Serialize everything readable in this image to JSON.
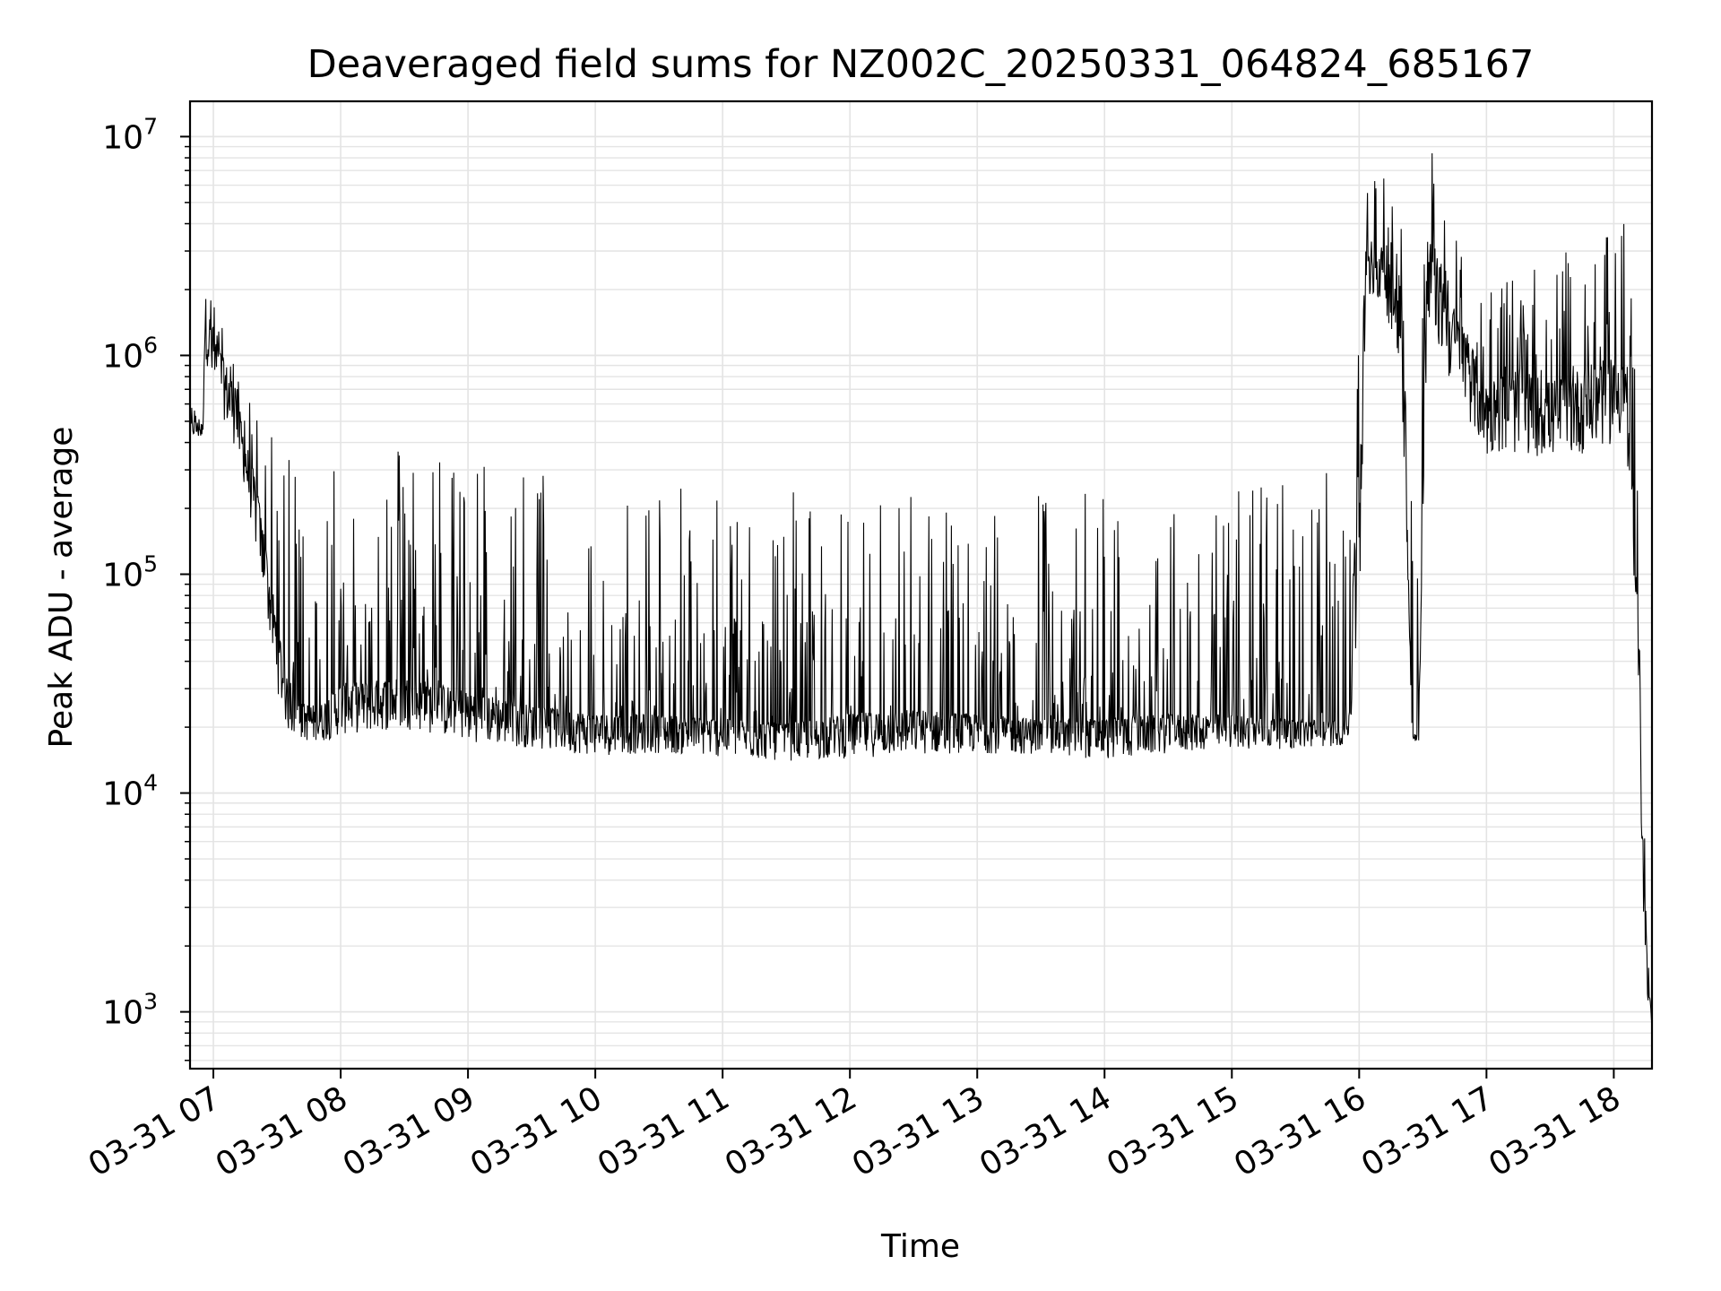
{
  "chart_data": {
    "type": "line",
    "title": "Deaveraged field sums for NZ002C_20250331_064824_685167",
    "xlabel": "Time",
    "ylabel": "Peak ADU - average",
    "x_scale": "time",
    "y_scale": "log",
    "xlim": [
      "2025-03-31 06:49",
      "2025-03-31 18:18"
    ],
    "ylim": [
      550,
      14500000
    ],
    "grid": true,
    "legend": "none",
    "x_tick_labels": [
      "03-31 07",
      "03-31 08",
      "03-31 09",
      "03-31 10",
      "03-31 11",
      "03-31 12",
      "03-31 13",
      "03-31 14",
      "03-31 15",
      "03-31 16",
      "03-31 17",
      "03-31 18"
    ],
    "x_tick_times": [
      "2025-03-31 07:00",
      "2025-03-31 08:00",
      "2025-03-31 09:00",
      "2025-03-31 10:00",
      "2025-03-31 11:00",
      "2025-03-31 12:00",
      "2025-03-31 13:00",
      "2025-03-31 14:00",
      "2025-03-31 15:00",
      "2025-03-31 16:00",
      "2025-03-31 17:00",
      "2025-03-31 18:00"
    ],
    "y_ticks": [
      1000,
      10000,
      100000,
      1000000,
      10000000
    ],
    "y_tick_labels": [
      {
        "base": "10",
        "exp": "3"
      },
      {
        "base": "10",
        "exp": "4"
      },
      {
        "base": "10",
        "exp": "5"
      },
      {
        "base": "10",
        "exp": "6"
      },
      {
        "base": "10",
        "exp": "7"
      }
    ],
    "colors": {
      "line": "#000000",
      "grid": "#e4e4e4",
      "axes": "#000000"
    },
    "series": [
      {
        "x": [
          "2025-03-31 06:49",
          "2025-03-31 06:55",
          "2025-03-31 06:56",
          "2025-03-31 07:00",
          "2025-03-31 07:05",
          "2025-03-31 07:10",
          "2025-03-31 07:15",
          "2025-03-31 07:20",
          "2025-03-31 07:25",
          "2025-03-31 07:30",
          "2025-03-31 07:35",
          "2025-03-31 07:40",
          "2025-03-31 07:50",
          "2025-03-31 08:00",
          "2025-03-31 08:30",
          "2025-03-31 09:00",
          "2025-03-31 09:30",
          "2025-03-31 10:00",
          "2025-03-31 10:30",
          "2025-03-31 11:00",
          "2025-03-31 11:30",
          "2025-03-31 12:00",
          "2025-03-31 12:30",
          "2025-03-31 13:00",
          "2025-03-31 13:30",
          "2025-03-31 14:00",
          "2025-03-31 14:30",
          "2025-03-31 15:00",
          "2025-03-31 15:30",
          "2025-03-31 15:55",
          "2025-03-31 16:00",
          "2025-03-31 16:03",
          "2025-03-31 16:06",
          "2025-03-31 16:10",
          "2025-03-31 16:15",
          "2025-03-31 16:20",
          "2025-03-31 16:25",
          "2025-03-31 16:28",
          "2025-03-31 16:32",
          "2025-03-31 16:35",
          "2025-03-31 16:40",
          "2025-03-31 16:45",
          "2025-03-31 16:50",
          "2025-03-31 17:00",
          "2025-03-31 17:15",
          "2025-03-31 17:30",
          "2025-03-31 17:45",
          "2025-03-31 18:00",
          "2025-03-31 18:05",
          "2025-03-31 18:08",
          "2025-03-31 18:10",
          "2025-03-31 18:12",
          "2025-03-31 18:14",
          "2025-03-31 18:16",
          "2025-03-31 18:18"
        ],
        "y": [
          500000,
          480000,
          1800000,
          1200000,
          900000,
          700000,
          400000,
          250000,
          120000,
          60000,
          30000,
          25000,
          24000,
          30000,
          32000,
          28000,
          24000,
          22000,
          22000,
          21000,
          20000,
          22000,
          23000,
          22000,
          21000,
          21000,
          22000,
          22000,
          21000,
          21000,
          500000,
          2500000,
          3200000,
          3000000,
          2500000,
          2000000,
          19000,
          18000,
          2500000,
          3000000,
          2000000,
          1500000,
          1200000,
          700000,
          800000,
          700000,
          800000,
          900000,
          1000000,
          300000,
          100000,
          50000,
          4000,
          1500,
          900
        ],
        "upper_envelope": [
          700000,
          650000,
          2200000,
          1800000,
          1500000,
          1200000,
          900000,
          600000,
          450000,
          400000,
          400000,
          400000,
          350000,
          400000,
          400000,
          350000,
          300000,
          300000,
          250000,
          250000,
          250000,
          230000,
          250000,
          250000,
          250000,
          250000,
          260000,
          280000,
          300000,
          300000,
          1500000,
          6000000,
          7000000,
          7000000,
          6000000,
          4500000,
          1000000,
          800000,
          8000000,
          9000000,
          7000000,
          5000000,
          3000000,
          2000000,
          2500000,
          2500000,
          3500000,
          3500000,
          6000000,
          2000000,
          1000000,
          200000,
          9000,
          2500,
          1500
        ],
        "lower_envelope": [
          400000,
          380000,
          800000,
          500000,
          400000,
          300000,
          200000,
          100000,
          50000,
          22000,
          16000,
          15000,
          14500,
          15000,
          16000,
          14000,
          13500,
          12500,
          13000,
          12500,
          12000,
          12000,
          12500,
          13000,
          13000,
          12000,
          13000,
          14000,
          14000,
          15000,
          13000,
          1200000,
          1500000,
          1400000,
          1000000,
          500000,
          17000,
          16500,
          700000,
          1000000,
          600000,
          500000,
          400000,
          250000,
          250000,
          250000,
          250000,
          280000,
          300000,
          150000,
          50000,
          10000,
          2500,
          1000,
          850
        ]
      }
    ]
  }
}
